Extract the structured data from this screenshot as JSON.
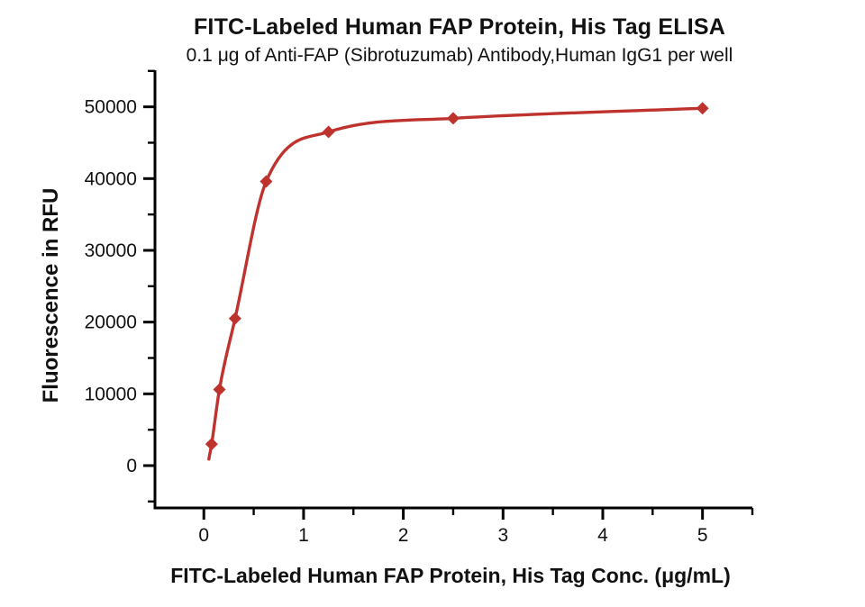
{
  "chart_data": {
    "type": "scatter",
    "title": "FITC-Labeled Human FAP Protein, His Tag ELISA",
    "subtitle": "0.1 μg of Anti-FAP (Sibrotuzumab) Antibody,Human IgG1 per well",
    "xlabel": "FITC-Labeled Human FAP Protein, His Tag Conc. (μg/mL)",
    "ylabel": "Fluorescence in RFU",
    "x": [
      0.078,
      0.156,
      0.313,
      0.625,
      1.25,
      2.5,
      5
    ],
    "y": [
      3000,
      10600,
      20500,
      39600,
      46500,
      48400,
      49800
    ],
    "curve": "smooth 4PL binding fit through points",
    "curve_start": {
      "x": 0.05,
      "y": 900
    },
    "marker": "diamond",
    "grid": false,
    "legend": "none",
    "xlim": [
      -0.49,
      5.5
    ],
    "ylim": [
      -5900,
      55100
    ],
    "xticks": {
      "major": [
        0,
        1,
        2,
        3,
        4,
        5
      ],
      "minor": [
        0.5,
        1.5,
        2.5,
        3.5,
        4.5,
        5.5
      ]
    },
    "yticks": {
      "major": [
        0,
        10000,
        20000,
        30000,
        40000,
        50000
      ],
      "minor": [
        -5000,
        5000,
        15000,
        25000,
        35000,
        45000,
        55000
      ]
    },
    "colors": {
      "line": "#BF332E",
      "marker": "#BF332E",
      "axis": "#000000",
      "text": "#111111",
      "background": "#FFFFFF"
    }
  }
}
